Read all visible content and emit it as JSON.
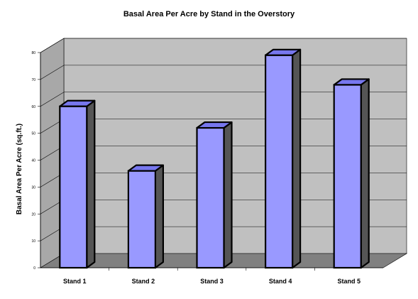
{
  "chart_data": {
    "type": "bar",
    "title": "Basal Area Per Acre by Stand in the Overstory",
    "xlabel": "",
    "ylabel": "Basal Area Per Acre (sq.ft.)",
    "categories": [
      "Stand 1",
      "Stand 2",
      "Stand 3",
      "Stand 4",
      "Stand 5"
    ],
    "values": [
      60,
      36,
      52,
      79,
      68
    ],
    "ylim": [
      0,
      80
    ],
    "yticks": [
      0,
      10,
      20,
      30,
      40,
      50,
      60,
      70,
      80
    ],
    "grid": true,
    "legend": "none",
    "colors": {
      "bar_front": "#9999ff",
      "bar_top": "#7777ee",
      "bar_side": "#555555",
      "wall": "#c0c0c0",
      "floor": "#808080"
    }
  }
}
